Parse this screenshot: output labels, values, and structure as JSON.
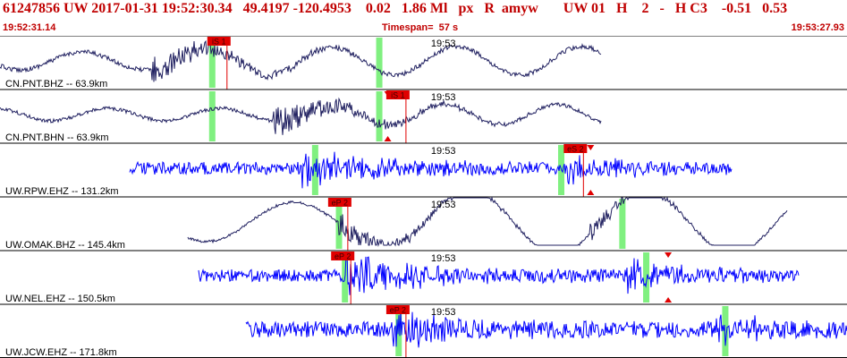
{
  "header": {
    "title": "61247856 UW 2017-01-31 19:52:30.34   49.4197 -120.4953    0.02   1.86 Ml   px   R  amyw       UW 01   H    2   -   H C3    -0.51   0.53",
    "start_time": "19:52:31.14",
    "timespan": "Timespan=  57 s",
    "end_time": "19:53:27.93"
  },
  "minute_label": "19:53",
  "colors": {
    "title_red": "#c00000",
    "pick_red": "#e00000",
    "marker_green": "#80f080",
    "trace_dark": "#202060",
    "trace_blue": "#0000ff",
    "border": "#000000"
  },
  "channels": [
    {
      "label": "CN.PNT.BHZ -- 63.9km",
      "color": "dark",
      "picks": [
        {
          "label": "iS 1",
          "t": 13.9
        }
      ],
      "green": [
        14.2,
        25.4
      ],
      "triangles": [],
      "minute_t": 28.9
    },
    {
      "label": "CN.PNT.BHN -- 63.9km",
      "color": "dark",
      "picks": [
        {
          "label": "iS 1",
          "t": 25.9
        }
      ],
      "green": [
        14.2,
        25.4
      ],
      "triangles": [
        {
          "t": 26.0,
          "dir": "down",
          "row": "top"
        },
        {
          "t": 26.0,
          "dir": "up",
          "row": "bottom"
        }
      ],
      "minute_t": 28.9
    },
    {
      "label": "UW.RPW.EHZ -- 131.2km",
      "color": "blue",
      "picks": [
        {
          "label": "eS 2",
          "t": 37.8
        }
      ],
      "green": [
        21.1,
        37.6
      ],
      "triangles": [
        {
          "t": 39.6,
          "dir": "down",
          "row": "top"
        },
        {
          "t": 39.6,
          "dir": "up",
          "row": "bottom"
        }
      ],
      "minute_t": 28.9
    },
    {
      "label": "UW.OMAK.BHZ -- 145.4km",
      "color": "dark",
      "picks": [
        {
          "label": "eP 2",
          "t": 22.0
        }
      ],
      "green": [
        22.7,
        41.7
      ],
      "triangles": [],
      "minute_t": 28.9
    },
    {
      "label": "UW.NEL.EHZ -- 150.5km",
      "color": "blue",
      "picks": [
        {
          "label": "eP 2",
          "t": 22.2
        }
      ],
      "green": [
        23.1,
        43.3
      ],
      "triangles": [
        {
          "t": 44.8,
          "dir": "down",
          "row": "top"
        },
        {
          "t": 44.8,
          "dir": "up",
          "row": "bottom"
        }
      ],
      "minute_t": 28.9
    },
    {
      "label": "UW.JCW.EHZ -- 171.8km",
      "color": "blue",
      "picks": [
        {
          "label": "eP 2",
          "t": 25.9
        }
      ],
      "green": [
        26.7,
        48.6
      ],
      "triangles": [],
      "minute_t": 28.9
    }
  ]
}
